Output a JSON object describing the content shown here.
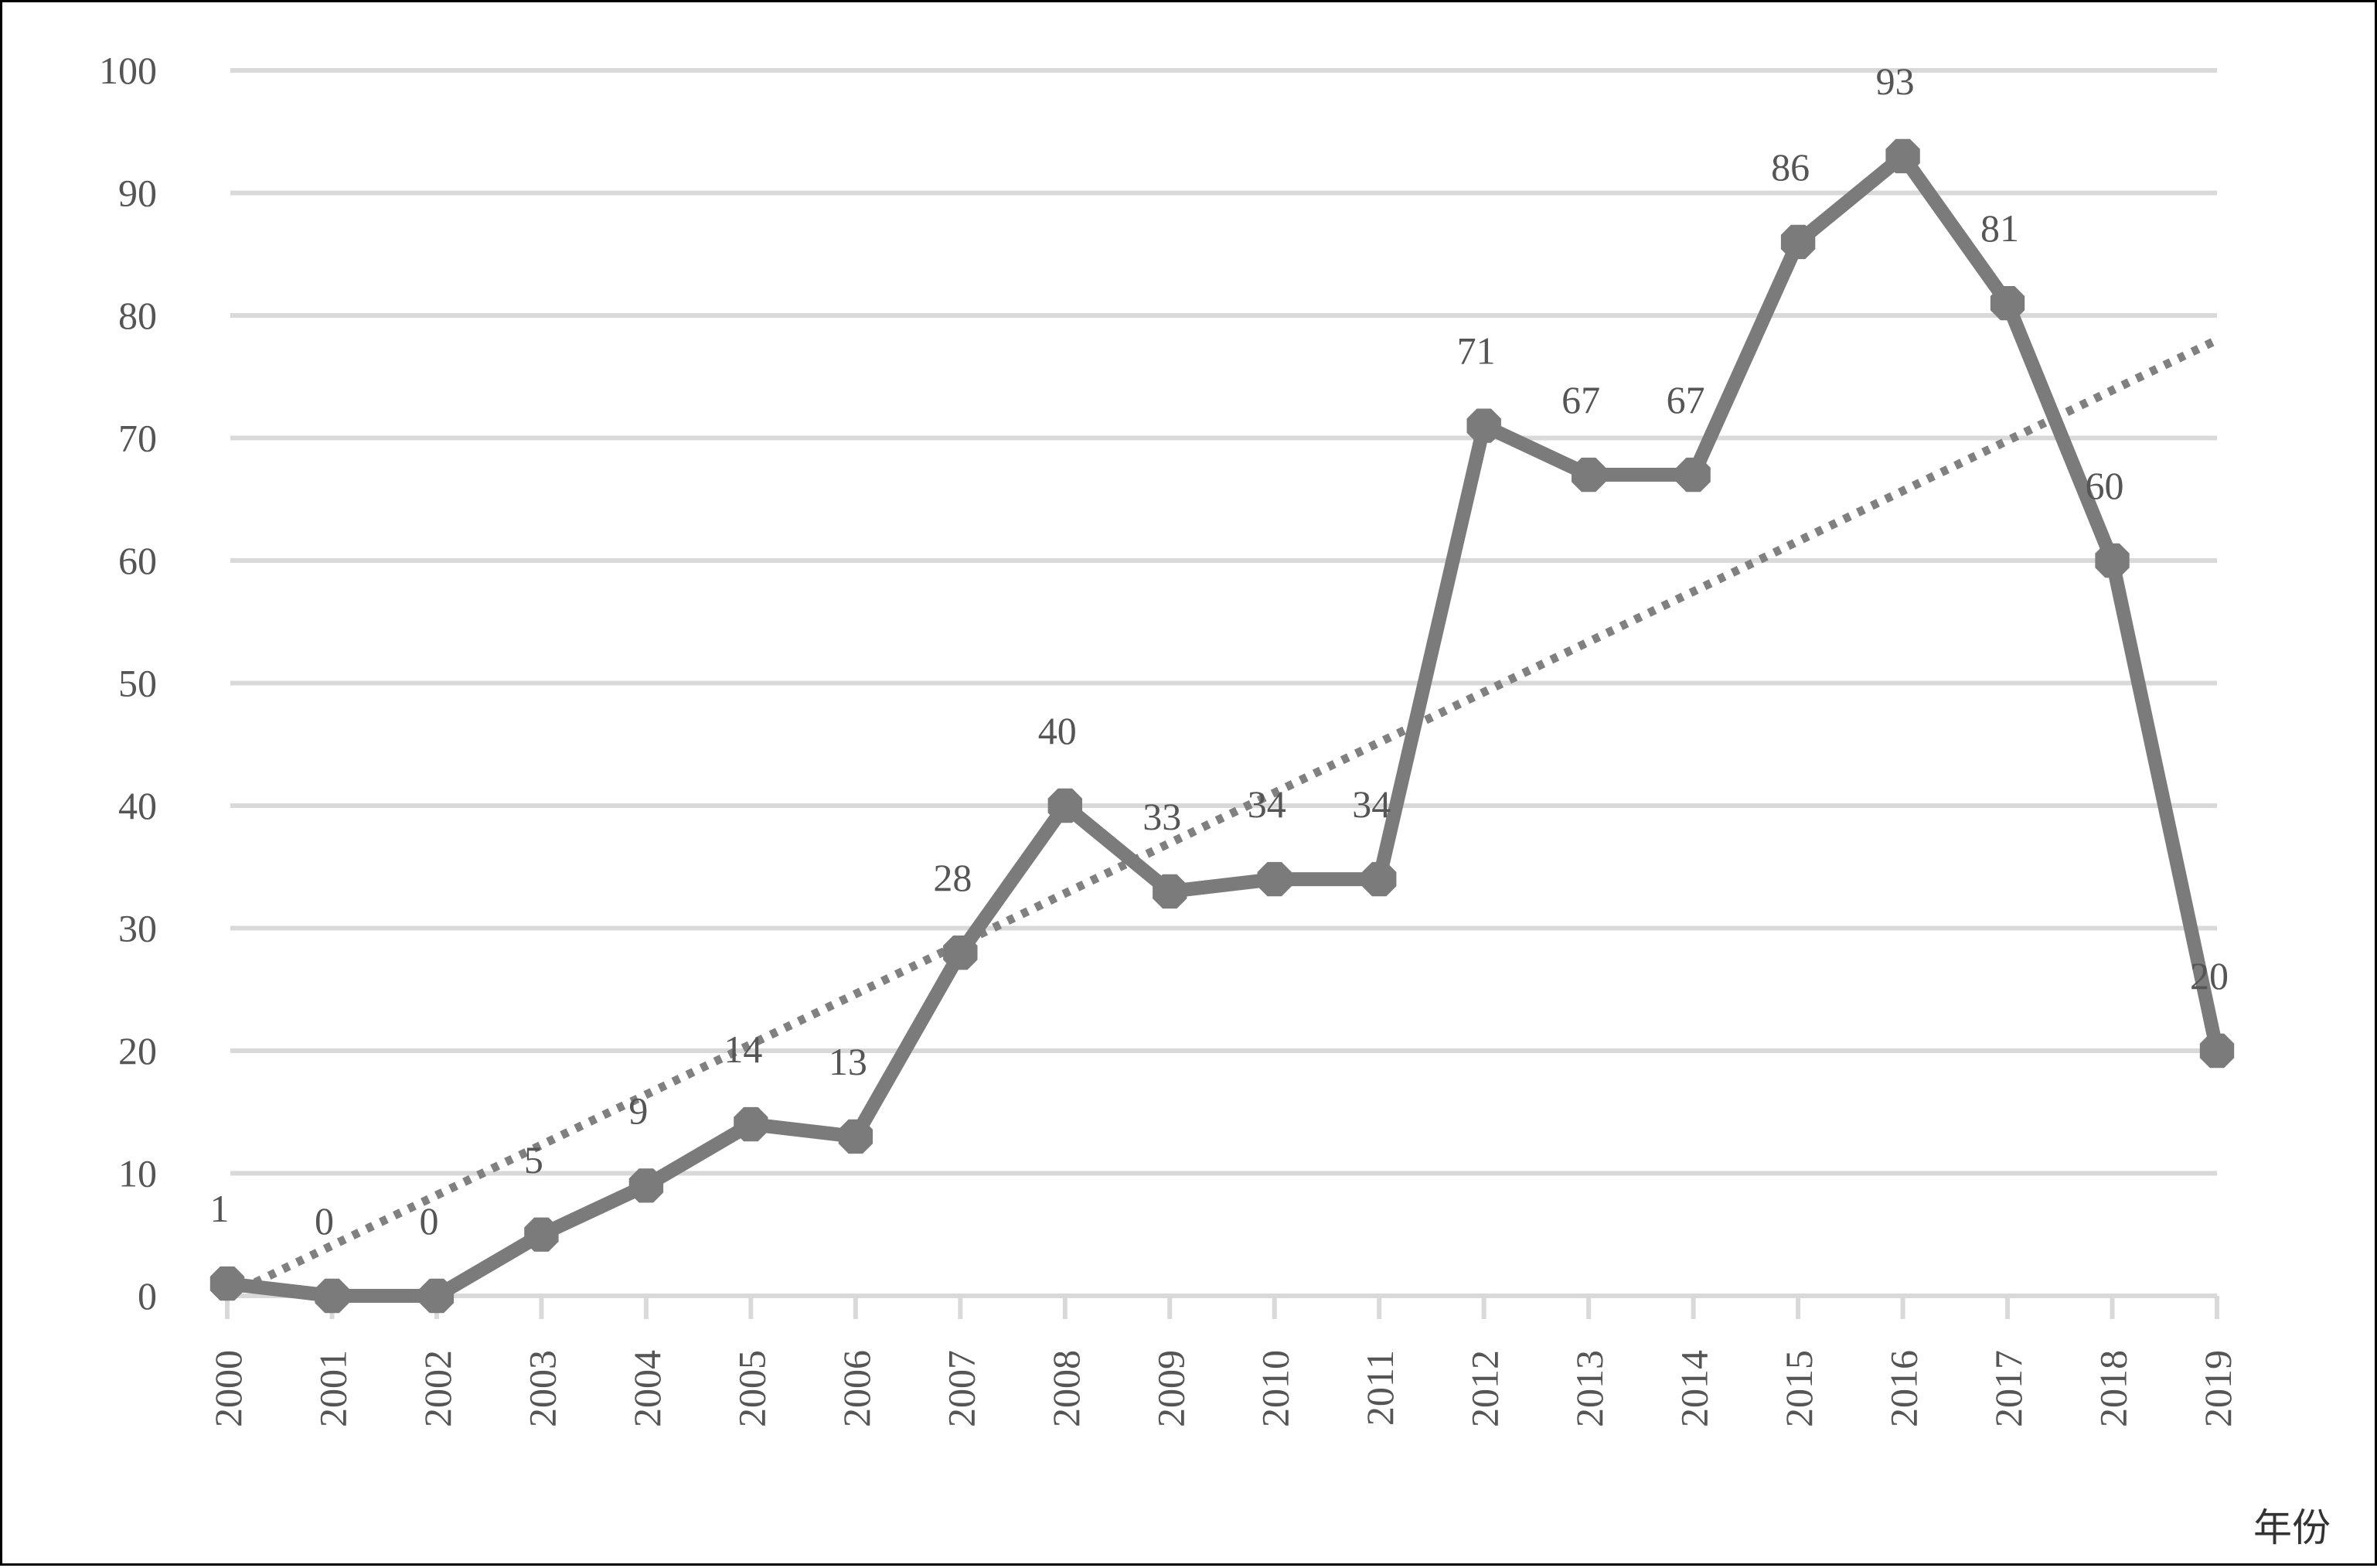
{
  "chart_data": {
    "type": "line",
    "title": "",
    "xlabel": "年份",
    "ylabel": "",
    "categories": [
      "2000",
      "2001",
      "2002",
      "2003",
      "2004",
      "2005",
      "2006",
      "2007",
      "2008",
      "2009",
      "2010",
      "2011",
      "2012",
      "2013",
      "2014",
      "2015",
      "2016",
      "2017",
      "2018",
      "2019"
    ],
    "series": [
      {
        "values": [
          1,
          0,
          0,
          5,
          9,
          14,
          13,
          28,
          40,
          33,
          34,
          34,
          71,
          67,
          67,
          86,
          93,
          81,
          60,
          20
        ],
        "style": "solid",
        "marker": "octagon",
        "data_labels": true
      }
    ],
    "trendline": {
      "type": "linear",
      "style": "dotted",
      "start": 0,
      "end": 78
    },
    "ylim": [
      0,
      100
    ],
    "yticks": [
      0,
      10,
      20,
      30,
      40,
      50,
      60,
      70,
      80,
      90,
      100
    ],
    "grid": true,
    "legend": "none",
    "colors": {
      "series": "#7b7b7b",
      "trend": "#808080",
      "grid": "#d9d9d9",
      "text": "#555555"
    }
  }
}
